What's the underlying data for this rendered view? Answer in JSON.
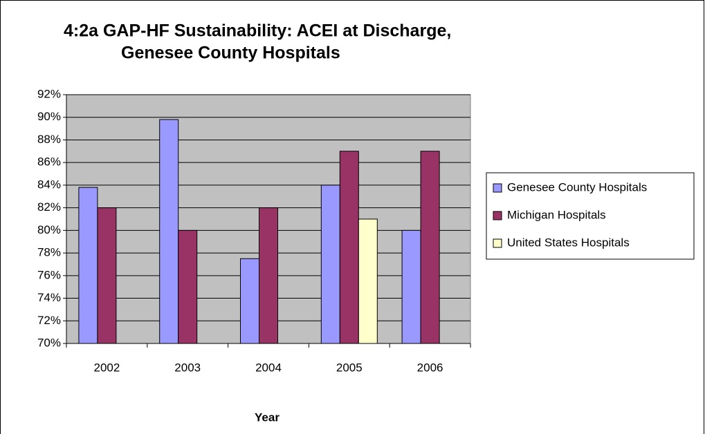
{
  "chart_data": {
    "type": "bar",
    "title": "4:2a  GAP-HF Sustainability: ACEI at Discharge,",
    "subtitle": "Genesee County Hospitals",
    "x_label": "Year",
    "categories": [
      "2002",
      "2003",
      "2004",
      "2005",
      "2006"
    ],
    "series": [
      {
        "name": "Genesee County Hospitals",
        "color": "#9999FF",
        "values": [
          83.8,
          89.8,
          77.5,
          84,
          80
        ]
      },
      {
        "name": "Michigan Hospitals",
        "color": "#993366",
        "values": [
          82,
          80,
          82,
          87,
          87
        ]
      },
      {
        "name": "United States Hospitals",
        "color": "#FFFFCC",
        "values": [
          null,
          null,
          null,
          81,
          null
        ]
      }
    ],
    "ylim": [
      70,
      92
    ],
    "yticks": [
      {
        "value": 70,
        "label": "70%"
      },
      {
        "value": 72,
        "label": "72%"
      },
      {
        "value": 74,
        "label": "74%"
      },
      {
        "value": 76,
        "label": "76%"
      },
      {
        "value": 78,
        "label": "78%"
      },
      {
        "value": 80,
        "label": "80%"
      },
      {
        "value": 82,
        "label": "82%"
      },
      {
        "value": 84,
        "label": "84%"
      },
      {
        "value": 86,
        "label": "86%"
      },
      {
        "value": 88,
        "label": "88%"
      },
      {
        "value": 90,
        "label": "90%"
      },
      {
        "value": 92,
        "label": "92%"
      }
    ],
    "grid": true,
    "plot_background": "#C0C0C0",
    "legend": "right"
  }
}
